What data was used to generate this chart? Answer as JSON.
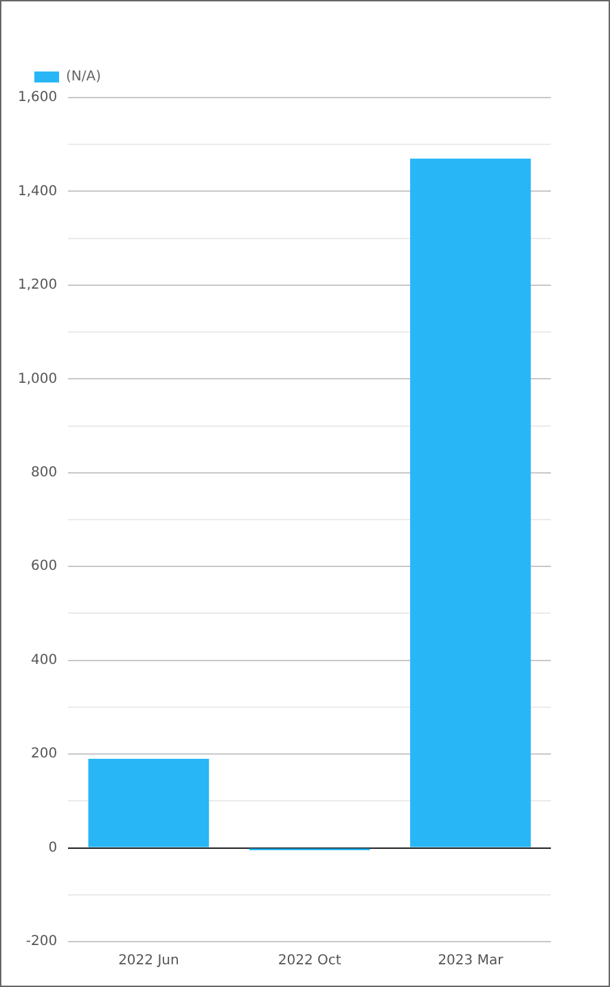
{
  "chart_data": {
    "type": "bar",
    "categories": [
      "2022 Jun",
      "2022 Oct",
      "2023 Mar"
    ],
    "series": [
      {
        "name": "(N/A)",
        "color": "#29b6f6",
        "values": [
          190,
          -5,
          1470
        ]
      }
    ],
    "ylim": [
      -200,
      1600
    ],
    "yticks": [
      -200,
      {
        "value": -100,
        "label": null
      },
      0,
      {
        "value": 100,
        "label": null
      },
      200,
      {
        "value": 300,
        "label": null
      },
      400,
      {
        "value": 500,
        "label": null
      },
      600,
      {
        "value": 700,
        "label": null
      },
      800,
      {
        "value": 900,
        "label": null
      },
      {
        "value": 1000,
        "label": "1,000"
      },
      {
        "value": 1100,
        "label": null
      },
      {
        "value": 1200,
        "label": "1,200"
      },
      {
        "value": 1300,
        "label": null
      },
      {
        "value": 1400,
        "label": "1,400"
      },
      {
        "value": 1500,
        "label": null
      },
      {
        "value": 1600,
        "label": "1,600"
      }
    ],
    "grid": "y",
    "legend": "top left"
  }
}
